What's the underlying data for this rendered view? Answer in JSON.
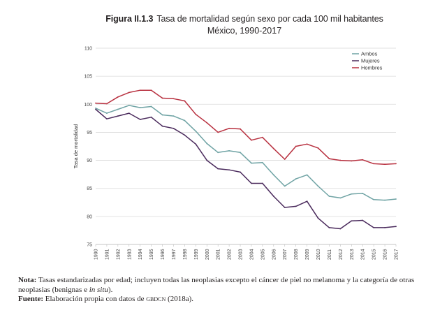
{
  "figure": {
    "label": "Figura II.1.3",
    "title": "Tasa de mortalidad según sexo por cada 100 mil habitantes",
    "subtitle": "México, 1990-2017"
  },
  "chart_data": {
    "type": "line",
    "ylabel": "Tasa de mortalidad",
    "xlabel": "",
    "ylim": [
      75,
      110
    ],
    "yticks": [
      75,
      80,
      85,
      90,
      95,
      100,
      105,
      110
    ],
    "grid": "horizontal",
    "legend_position": "top-right",
    "categories": [
      "1990",
      "1991",
      "1992",
      "1993",
      "1994",
      "1995",
      "1996",
      "1997",
      "1998",
      "1999",
      "2000",
      "2001",
      "2002",
      "2003",
      "2004",
      "2005",
      "2006",
      "2007",
      "2008",
      "2009",
      "2010",
      "2011",
      "2012",
      "2013",
      "2014",
      "2015",
      "2016",
      "2017"
    ],
    "series": [
      {
        "name": "Ambos",
        "color": "#6fa3a4",
        "values": [
          99.3,
          98.4,
          99.1,
          99.8,
          99.4,
          99.6,
          98.1,
          97.9,
          97.1,
          95.2,
          93.0,
          91.4,
          91.7,
          91.4,
          89.5,
          89.6,
          87.4,
          85.4,
          86.7,
          87.4,
          85.4,
          83.6,
          83.3,
          84.0,
          84.1,
          83.0,
          82.9,
          83.1
        ]
      },
      {
        "name": "Mujeres",
        "color": "#4a2a5c",
        "values": [
          99.1,
          97.4,
          97.9,
          98.4,
          97.3,
          97.7,
          96.1,
          95.7,
          94.5,
          92.9,
          90.0,
          88.5,
          88.3,
          87.9,
          85.9,
          85.9,
          83.6,
          81.6,
          81.8,
          82.7,
          79.7,
          78.0,
          77.8,
          79.2,
          79.3,
          78.0,
          78.0,
          78.2
        ]
      },
      {
        "name": "Hombres",
        "color": "#b8303f",
        "values": [
          100.2,
          100.1,
          101.3,
          102.1,
          102.5,
          102.5,
          101.1,
          101.0,
          100.6,
          98.2,
          96.7,
          95.0,
          95.7,
          95.6,
          93.6,
          94.1,
          92.1,
          90.2,
          92.5,
          92.9,
          92.2,
          90.3,
          90.0,
          89.9,
          90.1,
          89.4,
          89.3,
          89.4
        ]
      }
    ]
  },
  "notes": {
    "nota_label": "Nota:",
    "nota_text_1": "Tasas estandarizadas por edad; incluyen todas las neoplasias excepto el cáncer de piel no melanoma y la categoría de otras neoplasias (benignas e",
    "nota_italic": "in situ",
    "nota_text_2": ").",
    "fuente_label": "Fuente:",
    "fuente_text": "Elaboración propia con datos de",
    "fuente_source": "gbdcn",
    "fuente_tail": "(2018a)."
  }
}
